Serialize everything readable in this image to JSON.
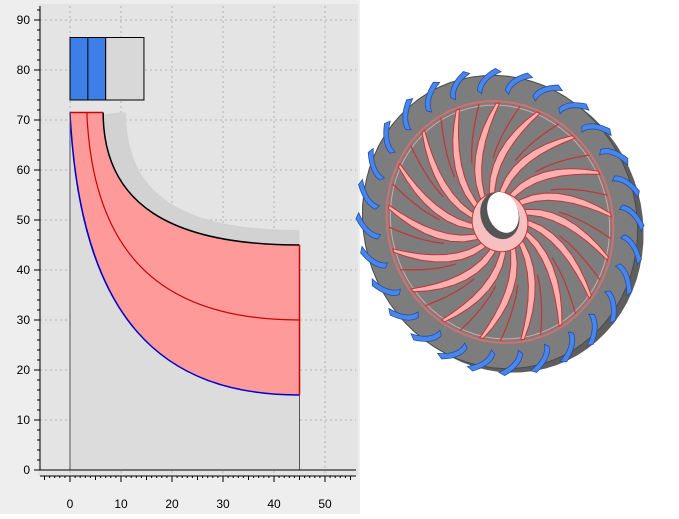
{
  "plot": {
    "x_ticks": [
      "0",
      "10",
      "20",
      "30",
      "40",
      "50"
    ],
    "y_ticks": [
      "0",
      "10",
      "20",
      "30",
      "40",
      "50",
      "60",
      "70",
      "80",
      "90"
    ],
    "colors": {
      "background": "#e6e6e6",
      "grid": "#b4b4b4",
      "hub_shade": "#dcdcdc",
      "passage_fill": "#ff9a9a",
      "passage_edge": "#cc0000",
      "shroud_line": "#000000",
      "hub_line": "#0000cc",
      "diffuser_blue": "#3d7fe6",
      "diffuser_gray": "#d8d8d8"
    }
  },
  "impeller": {
    "main_blades": 17,
    "diffuser_vanes": 28,
    "colors": {
      "disk": "#7d7d7d",
      "blade": "#ffb3b3",
      "blade_edge": "#c83232",
      "vane": "#4a86e8",
      "hole": "#ffffff"
    }
  }
}
